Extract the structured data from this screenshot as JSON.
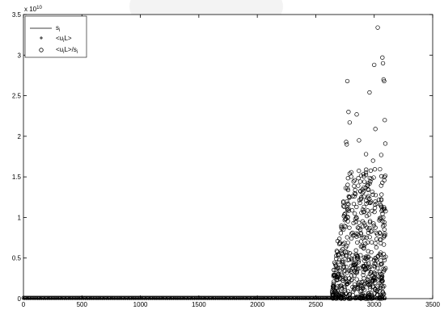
{
  "chart_data": {
    "type": "scatter",
    "title": "",
    "xlabel": "",
    "ylabel": "",
    "xlim": [
      0,
      3500
    ],
    "ylim": [
      0,
      3.5
    ],
    "y_multiplier": "x 10^10",
    "x_ticks": [
      "0",
      "500",
      "1000",
      "1500",
      "2000",
      "2500",
      "3000",
      "3500"
    ],
    "y_ticks": [
      "0",
      "0.5",
      "1",
      "1.5",
      "2",
      "2.5",
      "3",
      "3.5"
    ],
    "grid": false,
    "legend_position": "top-left",
    "legend": [
      {
        "label": "s_i",
        "marker": "line"
      },
      {
        "label": "<u_i L>",
        "marker": "plus"
      },
      {
        "label": "<u_i L>/s_i",
        "marker": "circle"
      }
    ],
    "series": [
      {
        "name": "s_i",
        "style": "line",
        "x": [
          0,
          3100
        ],
        "y": [
          0,
          0
        ]
      },
      {
        "name": "<u_i L>",
        "style": "plus",
        "x_range": [
          0,
          3100
        ],
        "y": 0
      },
      {
        "name": "<u_i L>/s_i",
        "style": "circle",
        "highlighted": [
          {
            "x": 3030,
            "y": 3.34
          },
          {
            "x": 3070,
            "y": 2.97
          },
          {
            "x": 3075,
            "y": 2.9
          },
          {
            "x": 3080,
            "y": 2.7
          },
          {
            "x": 3085,
            "y": 2.68
          },
          {
            "x": 2770,
            "y": 2.68
          },
          {
            "x": 3000,
            "y": 2.88
          },
          {
            "x": 2960,
            "y": 2.54
          },
          {
            "x": 2780,
            "y": 2.3
          },
          {
            "x": 3090,
            "y": 2.2
          },
          {
            "x": 2790,
            "y": 2.17
          },
          {
            "x": 2850,
            "y": 2.27
          },
          {
            "x": 3010,
            "y": 2.09
          },
          {
            "x": 2760,
            "y": 1.93
          },
          {
            "x": 2765,
            "y": 1.9
          },
          {
            "x": 3095,
            "y": 1.91
          },
          {
            "x": 2870,
            "y": 1.95
          },
          {
            "x": 2930,
            "y": 1.78
          },
          {
            "x": 2990,
            "y": 1.7
          },
          {
            "x": 3060,
            "y": 1.77
          }
        ],
        "dense_cluster": {
          "x_range": [
            2640,
            3100
          ],
          "y_max_envelope": 1.6
        }
      }
    ]
  }
}
